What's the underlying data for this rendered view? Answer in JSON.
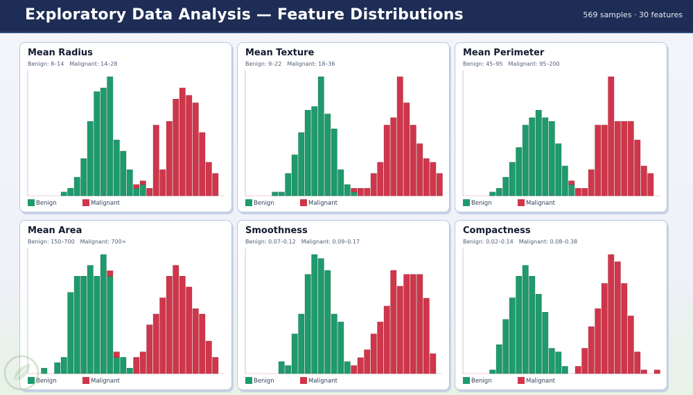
{
  "header": {
    "title": "Exploratory Data Analysis — Feature Distributions",
    "meta": "569 samples · 30 features"
  },
  "legend": {
    "benign": "Benign",
    "malignant": "Malignant"
  },
  "colors": {
    "benign": "#1f9a6d",
    "malignant": "#d0364b",
    "header_bg": "#1e2d55"
  },
  "chart_data": [
    {
      "type": "bar",
      "title": "Mean Radius",
      "subtitle_benign": "Benign: 8–14",
      "subtitle_malignant": "Malignant: 14–28",
      "series": [
        {
          "name": "Benign",
          "values": [
            0,
            0,
            0,
            0,
            0,
            1,
            2,
            5,
            10,
            20,
            28,
            29,
            32,
            15,
            12,
            7,
            2,
            3,
            0,
            0,
            0,
            0,
            0,
            0,
            0,
            0,
            0,
            0,
            0,
            0
          ]
        },
        {
          "name": "Malignant",
          "values": [
            0,
            0,
            0,
            0,
            0,
            0,
            0,
            0,
            0,
            0,
            0,
            0,
            0,
            0,
            0,
            0,
            1,
            1,
            2,
            19,
            7,
            20,
            26,
            29,
            27,
            25,
            17,
            9,
            6,
            0
          ]
        }
      ],
      "bin_totals": [
        0,
        0,
        0,
        0,
        0,
        1,
        2,
        5,
        10,
        20,
        28,
        29,
        32,
        15,
        12,
        7,
        3,
        4,
        2,
        19,
        7,
        20,
        26,
        29,
        27,
        25,
        17,
        9,
        6,
        0
      ]
    },
    {
      "type": "bar",
      "title": "Mean Texture",
      "subtitle_benign": "Benign: 9–22",
      "subtitle_malignant": "Malignant: 18–36",
      "series": [
        {
          "name": "Benign",
          "values": [
            0,
            0,
            0,
            0,
            1,
            1,
            6,
            11,
            17,
            23,
            24,
            32,
            22,
            18,
            7,
            3,
            1,
            0,
            0,
            0,
            0,
            0,
            0,
            0,
            0,
            0,
            0,
            0,
            0,
            0
          ]
        },
        {
          "name": "Malignant",
          "values": [
            0,
            0,
            0,
            0,
            0,
            0,
            0,
            0,
            0,
            0,
            0,
            0,
            0,
            0,
            0,
            0,
            1,
            2,
            2,
            6,
            9,
            19,
            21,
            32,
            25,
            19,
            14,
            10,
            9,
            6
          ]
        }
      ],
      "bin_totals": [
        0,
        0,
        0,
        0,
        1,
        1,
        6,
        11,
        17,
        23,
        24,
        32,
        22,
        18,
        7,
        3,
        2,
        2,
        2,
        6,
        9,
        19,
        21,
        32,
        25,
        19,
        14,
        10,
        9,
        6
      ]
    },
    {
      "type": "bar",
      "title": "Mean Perimeter",
      "subtitle_benign": "Benign: 45–95",
      "subtitle_malignant": "Malignant: 95–200",
      "series": [
        {
          "name": "Benign",
          "values": [
            0,
            0,
            0,
            0,
            1,
            2,
            5,
            9,
            13,
            19,
            21,
            23,
            21,
            20,
            14,
            8,
            3,
            0,
            0,
            0,
            0,
            0,
            0,
            0,
            0,
            0,
            0,
            0,
            0,
            0
          ]
        },
        {
          "name": "Malignant",
          "values": [
            0,
            0,
            0,
            0,
            0,
            0,
            0,
            0,
            0,
            0,
            0,
            0,
            0,
            0,
            0,
            0,
            1,
            2,
            2,
            7,
            19,
            19,
            32,
            20,
            20,
            20,
            15,
            8,
            6,
            0
          ]
        }
      ],
      "bin_totals": [
        0,
        0,
        0,
        0,
        1,
        2,
        5,
        9,
        13,
        19,
        21,
        23,
        21,
        20,
        14,
        8,
        4,
        2,
        2,
        7,
        19,
        19,
        32,
        20,
        20,
        20,
        15,
        8,
        6,
        0
      ]
    },
    {
      "type": "bar",
      "title": "Mean Area",
      "subtitle_benign": "Benign: 150–700",
      "subtitle_malignant": "Malignant: 700+",
      "series": [
        {
          "name": "Benign",
          "values": [
            0,
            0,
            1,
            0,
            2,
            3,
            15,
            18,
            18,
            20,
            18,
            22,
            18,
            3,
            3,
            1,
            0,
            0,
            0,
            0,
            0,
            0,
            0,
            0,
            0,
            0,
            0,
            0,
            0,
            0
          ]
        },
        {
          "name": "Malignant",
          "values": [
            0,
            0,
            0,
            0,
            0,
            0,
            0,
            0,
            0,
            0,
            0,
            0,
            1,
            1,
            0,
            0,
            3,
            4,
            9,
            11,
            14,
            18,
            20,
            18,
            16,
            12,
            11,
            6,
            3,
            0
          ]
        }
      ],
      "bin_totals": [
        0,
        0,
        1,
        0,
        2,
        3,
        15,
        18,
        18,
        20,
        18,
        22,
        19,
        4,
        3,
        1,
        3,
        4,
        9,
        11,
        14,
        18,
        20,
        18,
        16,
        12,
        11,
        6,
        3,
        0
      ]
    },
    {
      "type": "bar",
      "title": "Smoothness",
      "subtitle_benign": "Benign: 0.07–0.12",
      "subtitle_malignant": "Malignant: 0.09–0.17",
      "series": [
        {
          "name": "Benign",
          "values": [
            0,
            0,
            0,
            0,
            0,
            3,
            2,
            10,
            15,
            25,
            30,
            29,
            26,
            15,
            13,
            3,
            0,
            0,
            0,
            0,
            0,
            0,
            0,
            0,
            0,
            0,
            0,
            0,
            0,
            0
          ]
        },
        {
          "name": "Malignant",
          "values": [
            0,
            0,
            0,
            0,
            0,
            0,
            0,
            0,
            0,
            0,
            0,
            0,
            0,
            0,
            0,
            0,
            2,
            4,
            6,
            10,
            13,
            17,
            26,
            22,
            25,
            25,
            25,
            19,
            5,
            0
          ]
        }
      ],
      "bin_totals": [
        0,
        0,
        0,
        0,
        0,
        3,
        2,
        10,
        15,
        25,
        30,
        29,
        26,
        15,
        13,
        3,
        2,
        4,
        6,
        10,
        13,
        17,
        26,
        22,
        25,
        25,
        25,
        19,
        5,
        0
      ]
    },
    {
      "type": "bar",
      "title": "Compactness",
      "subtitle_benign": "Benign: 0.02–0.14",
      "subtitle_malignant": "Malignant: 0.08–0.38",
      "series": [
        {
          "name": "Benign",
          "values": [
            0,
            0,
            0,
            0,
            1,
            8,
            15,
            21,
            27,
            30,
            27,
            22,
            17,
            7,
            6,
            2,
            0,
            0,
            0,
            0,
            0,
            0,
            0,
            0,
            0,
            0,
            0,
            0,
            0,
            0
          ]
        },
        {
          "name": "Malignant",
          "values": [
            0,
            0,
            0,
            0,
            0,
            0,
            0,
            0,
            0,
            0,
            0,
            0,
            0,
            0,
            0,
            0,
            0,
            2,
            7,
            13,
            18,
            25,
            33,
            31,
            25,
            16,
            6,
            1,
            0,
            1
          ]
        }
      ],
      "bin_totals": [
        0,
        0,
        0,
        0,
        1,
        8,
        15,
        21,
        27,
        30,
        27,
        22,
        17,
        7,
        6,
        2,
        0,
        2,
        7,
        13,
        18,
        25,
        33,
        31,
        25,
        16,
        6,
        1,
        0,
        1
      ]
    }
  ]
}
